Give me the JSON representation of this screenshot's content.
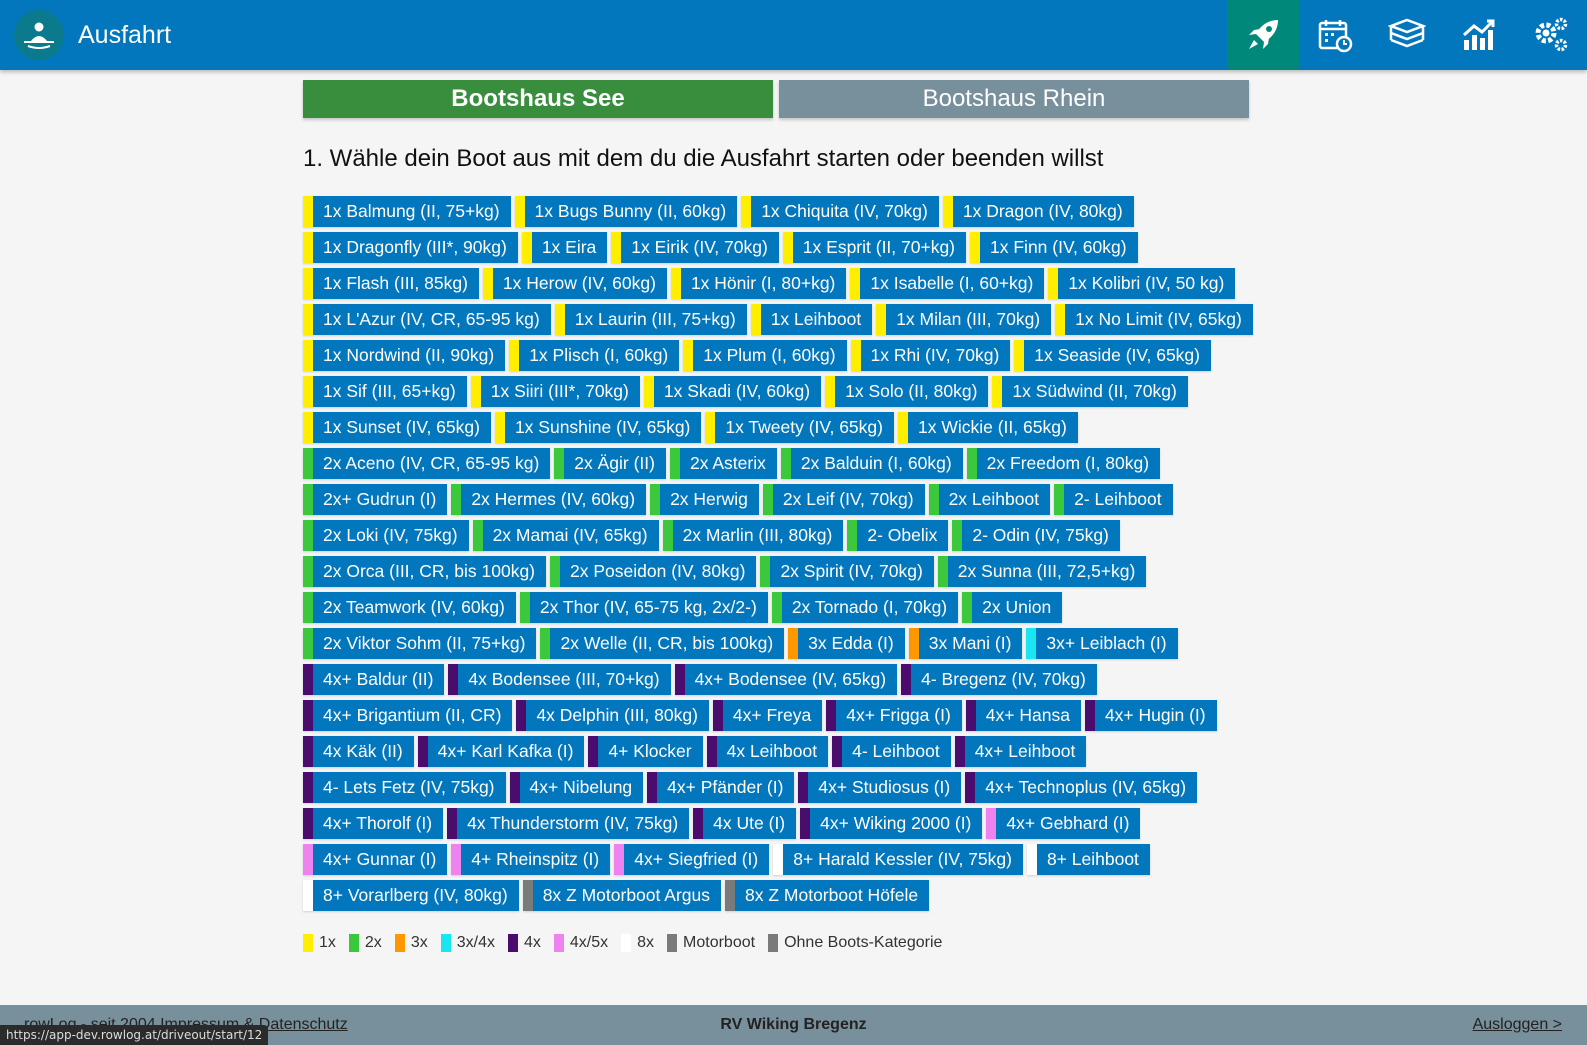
{
  "header": {
    "title": "Ausfahrt"
  },
  "nav": [
    {
      "icon": "rocket-icon",
      "active": true
    },
    {
      "icon": "calendar-clock-icon",
      "active": false
    },
    {
      "icon": "logbook-icon",
      "active": false
    },
    {
      "icon": "chart-icon",
      "active": false
    },
    {
      "icon": "settings-gears-icon",
      "active": false
    }
  ],
  "tabs": [
    {
      "label": "Bootshaus See",
      "active": true
    },
    {
      "label": "Bootshaus Rhein",
      "active": false
    }
  ],
  "heading": "1. Wähle dein Boot aus mit dem du die Ausfahrt starten oder beenden willst",
  "colors": {
    "1x": "#ffee00",
    "2x": "#3cc83c",
    "3x": "#ff9800",
    "3x/4x": "#19e6f0",
    "4x": "#4a0d6e",
    "4x/5x": "#ee82ee",
    "8x": "#ffffff",
    "motor": "#7a7a7a",
    "none": "#7a7a7a",
    "button": "#0277bd"
  },
  "boats": [
    {
      "label": "1x Balmung (II, 75+kg)",
      "cat": "1x"
    },
    {
      "label": "1x Bugs Bunny (II, 60kg)",
      "cat": "1x"
    },
    {
      "label": "1x Chiquita (IV, 70kg)",
      "cat": "1x"
    },
    {
      "label": "1x Dragon (IV, 80kg)",
      "cat": "1x"
    },
    {
      "label": "1x Dragonfly (III*, 90kg)",
      "cat": "1x"
    },
    {
      "label": "1x Eira",
      "cat": "1x"
    },
    {
      "label": "1x Eirik (IV, 70kg)",
      "cat": "1x"
    },
    {
      "label": "1x Esprit (II, 70+kg)",
      "cat": "1x"
    },
    {
      "label": "1x Finn (IV, 60kg)",
      "cat": "1x"
    },
    {
      "label": "1x Flash (III, 85kg)",
      "cat": "1x"
    },
    {
      "label": "1x Herow (IV, 60kg)",
      "cat": "1x"
    },
    {
      "label": "1x Hönir (I, 80+kg)",
      "cat": "1x"
    },
    {
      "label": "1x Isabelle (I, 60+kg)",
      "cat": "1x"
    },
    {
      "label": "1x Kolibri (IV, 50 kg)",
      "cat": "1x"
    },
    {
      "label": "1x L'Azur (IV, CR, 65-95 kg)",
      "cat": "1x"
    },
    {
      "label": "1x Laurin (III, 75+kg)",
      "cat": "1x"
    },
    {
      "label": "1x Leihboot",
      "cat": "1x"
    },
    {
      "label": "1x Milan (III, 70kg)",
      "cat": "1x"
    },
    {
      "label": "1x No Limit (IV, 65kg)",
      "cat": "1x"
    },
    {
      "label": "1x Nordwind (II, 90kg)",
      "cat": "1x"
    },
    {
      "label": "1x Plisch (I, 60kg)",
      "cat": "1x"
    },
    {
      "label": "1x Plum (I, 60kg)",
      "cat": "1x"
    },
    {
      "label": "1x Rhi (IV, 70kg)",
      "cat": "1x"
    },
    {
      "label": "1x Seaside (IV, 65kg)",
      "cat": "1x"
    },
    {
      "label": "1x Sif (III, 65+kg)",
      "cat": "1x"
    },
    {
      "label": "1x Siiri (III*, 70kg)",
      "cat": "1x"
    },
    {
      "label": "1x Skadi (IV, 60kg)",
      "cat": "1x"
    },
    {
      "label": "1x Solo (II, 80kg)",
      "cat": "1x"
    },
    {
      "label": "1x Südwind (II, 70kg)",
      "cat": "1x"
    },
    {
      "label": "1x Sunset (IV, 65kg)",
      "cat": "1x"
    },
    {
      "label": "1x Sunshine (IV, 65kg)",
      "cat": "1x"
    },
    {
      "label": "1x Tweety (IV, 65kg)",
      "cat": "1x"
    },
    {
      "label": "1x Wickie (II, 65kg)",
      "cat": "1x"
    },
    {
      "label": "2x Aceno (IV, CR, 65-95 kg)",
      "cat": "2x"
    },
    {
      "label": "2x Ägir (II)",
      "cat": "2x"
    },
    {
      "label": "2x Asterix",
      "cat": "2x"
    },
    {
      "label": "2x Balduin (I, 60kg)",
      "cat": "2x"
    },
    {
      "label": "2x Freedom (I, 80kg)",
      "cat": "2x"
    },
    {
      "label": "2x+ Gudrun (I)",
      "cat": "2x"
    },
    {
      "label": "2x Hermes (IV, 60kg)",
      "cat": "2x"
    },
    {
      "label": "2x Herwig",
      "cat": "2x"
    },
    {
      "label": "2x Leif (IV, 70kg)",
      "cat": "2x"
    },
    {
      "label": "2x Leihboot",
      "cat": "2x"
    },
    {
      "label": "2- Leihboot",
      "cat": "2x"
    },
    {
      "label": "2x Loki (IV, 75kg)",
      "cat": "2x"
    },
    {
      "label": "2x Mamai (IV, 65kg)",
      "cat": "2x"
    },
    {
      "label": "2x Marlin (III, 80kg)",
      "cat": "2x"
    },
    {
      "label": "2- Obelix",
      "cat": "2x"
    },
    {
      "label": "2- Odin (IV, 75kg)",
      "cat": "2x"
    },
    {
      "label": "2x Orca (III, CR, bis 100kg)",
      "cat": "2x"
    },
    {
      "label": "2x Poseidon (IV, 80kg)",
      "cat": "2x"
    },
    {
      "label": "2x Spirit (IV, 70kg)",
      "cat": "2x"
    },
    {
      "label": "2x Sunna (III, 72,5+kg)",
      "cat": "2x"
    },
    {
      "label": "2x Teamwork (IV, 60kg)",
      "cat": "2x"
    },
    {
      "label": "2x Thor (IV, 65-75 kg, 2x/2-)",
      "cat": "2x"
    },
    {
      "label": "2x Tornado (I, 70kg)",
      "cat": "2x"
    },
    {
      "label": "2x Union",
      "cat": "2x"
    },
    {
      "label": "2x Viktor Sohm (II, 75+kg)",
      "cat": "2x"
    },
    {
      "label": "2x Welle (II, CR, bis 100kg)",
      "cat": "2x"
    },
    {
      "label": "3x Edda (I)",
      "cat": "3x"
    },
    {
      "label": "3x Mani (I)",
      "cat": "3x"
    },
    {
      "label": "3x+ Leiblach (I)",
      "cat": "3x/4x"
    },
    {
      "label": "4x+ Baldur (II)",
      "cat": "4x"
    },
    {
      "label": "4x Bodensee (III, 70+kg)",
      "cat": "4x"
    },
    {
      "label": "4x+ Bodensee (IV, 65kg)",
      "cat": "4x"
    },
    {
      "label": "4- Bregenz (IV, 70kg)",
      "cat": "4x"
    },
    {
      "label": "4x+ Brigantium (II, CR)",
      "cat": "4x"
    },
    {
      "label": "4x Delphin (III, 80kg)",
      "cat": "4x"
    },
    {
      "label": "4x+ Freya",
      "cat": "4x"
    },
    {
      "label": "4x+ Frigga (I)",
      "cat": "4x"
    },
    {
      "label": "4x+ Hansa",
      "cat": "4x"
    },
    {
      "label": "4x+ Hugin (I)",
      "cat": "4x"
    },
    {
      "label": "4x Käk (II)",
      "cat": "4x"
    },
    {
      "label": "4x+ Karl Kafka (I)",
      "cat": "4x"
    },
    {
      "label": "4+ Klocker",
      "cat": "4x"
    },
    {
      "label": "4x Leihboot",
      "cat": "4x"
    },
    {
      "label": "4- Leihboot",
      "cat": "4x"
    },
    {
      "label": "4x+ Leihboot",
      "cat": "4x"
    },
    {
      "label": "4- Lets Fetz (IV, 75kg)",
      "cat": "4x"
    },
    {
      "label": "4x+ Nibelung",
      "cat": "4x"
    },
    {
      "label": "4x+ Pfänder (I)",
      "cat": "4x"
    },
    {
      "label": "4x+ Studiosus (I)",
      "cat": "4x"
    },
    {
      "label": "4x+ Technoplus (IV, 65kg)",
      "cat": "4x"
    },
    {
      "label": "4x+ Thorolf (I)",
      "cat": "4x"
    },
    {
      "label": "4x Thunderstorm (IV, 75kg)",
      "cat": "4x"
    },
    {
      "label": "4x Ute (I)",
      "cat": "4x"
    },
    {
      "label": "4x+ Wiking 2000 (I)",
      "cat": "4x"
    },
    {
      "label": "4x+ Gebhard (I)",
      "cat": "4x/5x"
    },
    {
      "label": "4x+ Gunnar (I)",
      "cat": "4x/5x"
    },
    {
      "label": "4+ Rheinspitz (I)",
      "cat": "4x/5x"
    },
    {
      "label": "4x+ Siegfried (I)",
      "cat": "4x/5x"
    },
    {
      "label": "8+ Harald Kessler (IV, 75kg)",
      "cat": "8x"
    },
    {
      "label": "8+ Leihboot",
      "cat": "8x"
    },
    {
      "label": "8+ Vorarlberg (IV, 80kg)",
      "cat": "8x"
    },
    {
      "label": "8x Z Motorboot Argus",
      "cat": "motor"
    },
    {
      "label": "8x Z Motorboot Höfele",
      "cat": "motor"
    }
  ],
  "legend": [
    {
      "label": "1x",
      "cat": "1x"
    },
    {
      "label": "2x",
      "cat": "2x"
    },
    {
      "label": "3x",
      "cat": "3x"
    },
    {
      "label": "3x/4x",
      "cat": "3x/4x"
    },
    {
      "label": "4x",
      "cat": "4x"
    },
    {
      "label": "4x/5x",
      "cat": "4x/5x"
    },
    {
      "label": "8x",
      "cat": "8x"
    },
    {
      "label": "Motorboot",
      "cat": "motor"
    },
    {
      "label": "Ohne Boots-Kategorie",
      "cat": "none"
    }
  ],
  "footer": {
    "left_text": "rowLog - seit 2004",
    "impressum": "Impressum",
    "amp": "&",
    "datenschutz": "Datenschutz",
    "center": "RV Wiking Bregenz",
    "logout": "Ausloggen >"
  },
  "status_url": "https://app-dev.rowlog.at/driveout/start/12"
}
